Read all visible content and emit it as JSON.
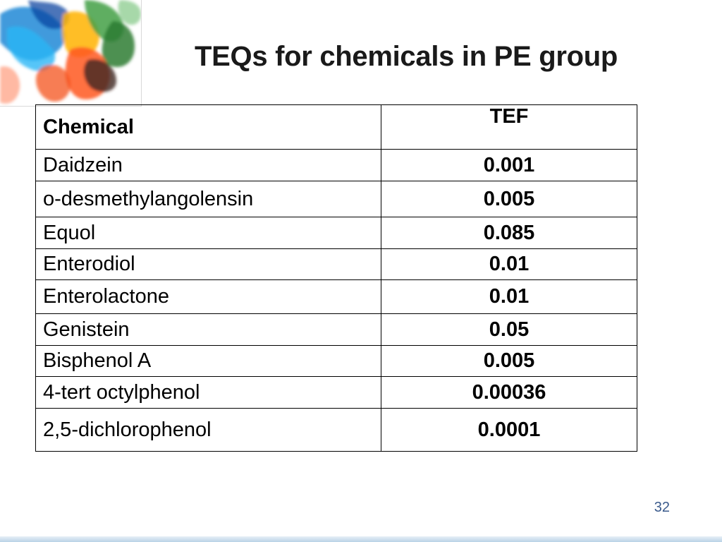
{
  "slide": {
    "title": "TEQs for chemicals in PE group",
    "page_number": "32",
    "corner_image": "colorful-ink-splash"
  },
  "table": {
    "headers": {
      "chemical": "Chemical",
      "tef": "TEF"
    },
    "rows": [
      {
        "chemical": "Daidzein",
        "tef": "0.001"
      },
      {
        "chemical": "o-desmethylangolensin",
        "tef": "0.005"
      },
      {
        "chemical": "Equol",
        "tef": "0.085"
      },
      {
        "chemical": "Enterodiol",
        "tef": "0.01"
      },
      {
        "chemical": "Enterolactone",
        "tef": "0.01"
      },
      {
        "chemical": "Genistein",
        "tef": "0.05"
      },
      {
        "chemical": "Bisphenol A",
        "tef": "0.005"
      },
      {
        "chemical": "4-tert octylphenol",
        "tef": "0.00036"
      },
      {
        "chemical": "2,5-dichlorophenol",
        "tef": "0.0001"
      }
    ]
  },
  "colors": {
    "value_text": "#e8141b",
    "title_text": "#1a1a1a",
    "page_number": "#3a5a8c"
  }
}
